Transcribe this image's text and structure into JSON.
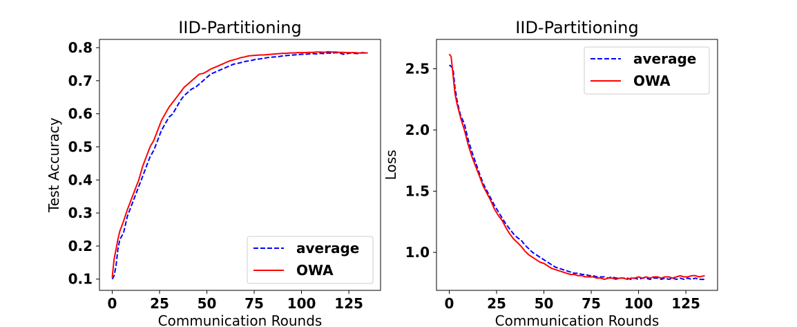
{
  "figure": {
    "line_colors": {
      "average": "#0000ff",
      "OWA": "#ff0000"
    }
  },
  "chart_data": [
    {
      "type": "line",
      "title": "IID-Partitioning",
      "xlabel": "Communication Rounds",
      "ylabel": "Test Accuracy",
      "xlim": [
        -6.75,
        141.75
      ],
      "ylim": [
        0.066,
        0.825
      ],
      "xticks": [
        0,
        25,
        50,
        75,
        100,
        125
      ],
      "yticks": [
        0.1,
        0.2,
        0.3,
        0.4,
        0.5,
        0.6,
        0.7,
        0.8
      ],
      "xtick_labels": [
        "0",
        "25",
        "50",
        "75",
        "100",
        "125"
      ],
      "ytick_labels": [
        "0.1",
        "0.2",
        "0.3",
        "0.4",
        "0.5",
        "0.6",
        "0.7",
        "0.8"
      ],
      "legend_position": "lower-right",
      "grid": false,
      "series": [
        {
          "name": "average",
          "style": "dashed",
          "x": [
            0,
            1,
            2,
            3,
            4,
            5,
            6,
            8,
            10,
            12,
            14,
            16,
            18,
            20,
            22,
            24,
            26,
            28,
            30,
            32,
            34,
            36,
            38,
            40,
            42,
            44,
            46,
            48,
            50,
            52,
            54,
            56,
            58,
            60,
            62,
            64,
            66,
            68,
            70,
            72,
            74,
            76,
            78,
            80,
            82,
            84,
            86,
            88,
            90,
            92,
            94,
            96,
            98,
            100,
            102,
            104,
            106,
            108,
            110,
            112,
            114,
            116,
            118,
            120,
            122,
            124,
            126,
            128,
            130,
            132,
            135
          ],
          "y": [
            0.1,
            0.11,
            0.14,
            0.19,
            0.22,
            0.23,
            0.24,
            0.29,
            0.32,
            0.35,
            0.38,
            0.41,
            0.44,
            0.47,
            0.49,
            0.52,
            0.55,
            0.57,
            0.59,
            0.6,
            0.62,
            0.64,
            0.655,
            0.665,
            0.675,
            0.68,
            0.69,
            0.7,
            0.71,
            0.72,
            0.725,
            0.73,
            0.735,
            0.74,
            0.745,
            0.75,
            0.752,
            0.755,
            0.758,
            0.76,
            0.762,
            0.765,
            0.766,
            0.768,
            0.77,
            0.771,
            0.772,
            0.773,
            0.775,
            0.776,
            0.777,
            0.778,
            0.779,
            0.78,
            0.78,
            0.781,
            0.782,
            0.781,
            0.783,
            0.782,
            0.784,
            0.783,
            0.785,
            0.784,
            0.78,
            0.782,
            0.784,
            0.783,
            0.782,
            0.785,
            0.784
          ]
        },
        {
          "name": "OWA",
          "style": "solid",
          "x": [
            0,
            1,
            2,
            3,
            4,
            5,
            6,
            8,
            10,
            12,
            14,
            16,
            18,
            20,
            22,
            24,
            26,
            28,
            30,
            32,
            34,
            36,
            38,
            40,
            42,
            44,
            46,
            48,
            50,
            52,
            54,
            56,
            58,
            60,
            62,
            64,
            66,
            68,
            70,
            72,
            74,
            76,
            78,
            80,
            82,
            84,
            86,
            88,
            90,
            92,
            94,
            96,
            98,
            100,
            102,
            104,
            106,
            108,
            110,
            112,
            114,
            116,
            118,
            120,
            122,
            124,
            126,
            128,
            130,
            132,
            135
          ],
          "y": [
            0.105,
            0.16,
            0.19,
            0.22,
            0.245,
            0.26,
            0.275,
            0.31,
            0.34,
            0.37,
            0.4,
            0.44,
            0.47,
            0.5,
            0.52,
            0.55,
            0.58,
            0.6,
            0.62,
            0.635,
            0.65,
            0.665,
            0.68,
            0.69,
            0.7,
            0.71,
            0.72,
            0.722,
            0.728,
            0.735,
            0.74,
            0.745,
            0.75,
            0.755,
            0.76,
            0.763,
            0.766,
            0.77,
            0.772,
            0.775,
            0.776,
            0.777,
            0.778,
            0.778,
            0.779,
            0.78,
            0.781,
            0.782,
            0.783,
            0.783,
            0.784,
            0.784,
            0.785,
            0.785,
            0.785,
            0.786,
            0.786,
            0.787,
            0.787,
            0.786,
            0.788,
            0.787,
            0.787,
            0.786,
            0.786,
            0.785,
            0.785,
            0.785,
            0.784,
            0.784,
            0.784
          ]
        }
      ]
    },
    {
      "type": "line",
      "title": "IID-Partitioning",
      "xlabel": "Communication Rounds",
      "ylabel": "Loss",
      "xlim": [
        -6.75,
        141.75
      ],
      "ylim": [
        0.69,
        2.74
      ],
      "xticks": [
        0,
        25,
        50,
        75,
        100,
        125
      ],
      "yticks": [
        1.0,
        1.5,
        2.0,
        2.5
      ],
      "xtick_labels": [
        "0",
        "25",
        "50",
        "75",
        "100",
        "125"
      ],
      "ytick_labels": [
        "1.0",
        "1.5",
        "2.0",
        "2.5"
      ],
      "legend_position": "upper-right",
      "grid": false,
      "series": [
        {
          "name": "average",
          "style": "dashed",
          "x": [
            0,
            1,
            2,
            3,
            4,
            5,
            6,
            8,
            10,
            12,
            14,
            16,
            18,
            20,
            22,
            24,
            26,
            28,
            30,
            32,
            34,
            36,
            38,
            40,
            42,
            44,
            46,
            48,
            50,
            52,
            54,
            56,
            58,
            60,
            62,
            64,
            66,
            68,
            70,
            72,
            74,
            76,
            78,
            80,
            82,
            84,
            86,
            88,
            90,
            92,
            94,
            96,
            98,
            100,
            102,
            104,
            106,
            108,
            110,
            112,
            114,
            116,
            118,
            120,
            122,
            124,
            126,
            128,
            130,
            132,
            135
          ],
          "y": [
            2.53,
            2.52,
            2.5,
            2.35,
            2.25,
            2.18,
            2.12,
            2.05,
            1.92,
            1.82,
            1.73,
            1.64,
            1.56,
            1.5,
            1.44,
            1.38,
            1.33,
            1.28,
            1.23,
            1.19,
            1.15,
            1.12,
            1.1,
            1.06,
            1.03,
            1.0,
            0.98,
            0.96,
            0.94,
            0.92,
            0.9,
            0.88,
            0.87,
            0.86,
            0.85,
            0.84,
            0.83,
            0.83,
            0.82,
            0.82,
            0.81,
            0.81,
            0.8,
            0.8,
            0.8,
            0.79,
            0.8,
            0.79,
            0.79,
            0.79,
            0.79,
            0.78,
            0.79,
            0.78,
            0.79,
            0.79,
            0.78,
            0.79,
            0.79,
            0.78,
            0.79,
            0.78,
            0.79,
            0.78,
            0.79,
            0.78,
            0.79,
            0.78,
            0.79,
            0.78,
            0.78
          ]
        },
        {
          "name": "OWA",
          "style": "solid",
          "x": [
            0,
            1,
            2,
            3,
            4,
            5,
            6,
            8,
            10,
            12,
            14,
            16,
            18,
            20,
            22,
            24,
            26,
            28,
            30,
            32,
            34,
            36,
            38,
            40,
            42,
            44,
            46,
            48,
            50,
            52,
            54,
            56,
            58,
            60,
            62,
            64,
            66,
            68,
            70,
            72,
            74,
            76,
            78,
            80,
            82,
            84,
            86,
            88,
            90,
            92,
            94,
            96,
            98,
            100,
            102,
            104,
            106,
            108,
            110,
            112,
            114,
            116,
            118,
            120,
            122,
            124,
            126,
            128,
            130,
            132,
            135
          ],
          "y": [
            2.62,
            2.6,
            2.45,
            2.3,
            2.22,
            2.16,
            2.1,
            2.0,
            1.88,
            1.78,
            1.7,
            1.62,
            1.54,
            1.48,
            1.42,
            1.35,
            1.3,
            1.26,
            1.2,
            1.15,
            1.11,
            1.08,
            1.05,
            1.01,
            0.98,
            0.96,
            0.94,
            0.92,
            0.91,
            0.89,
            0.87,
            0.86,
            0.85,
            0.84,
            0.83,
            0.82,
            0.82,
            0.81,
            0.81,
            0.8,
            0.8,
            0.8,
            0.79,
            0.79,
            0.78,
            0.79,
            0.79,
            0.78,
            0.79,
            0.79,
            0.78,
            0.79,
            0.79,
            0.8,
            0.79,
            0.8,
            0.79,
            0.8,
            0.8,
            0.79,
            0.8,
            0.8,
            0.79,
            0.8,
            0.81,
            0.8,
            0.8,
            0.81,
            0.81,
            0.8,
            0.81
          ]
        }
      ]
    }
  ]
}
